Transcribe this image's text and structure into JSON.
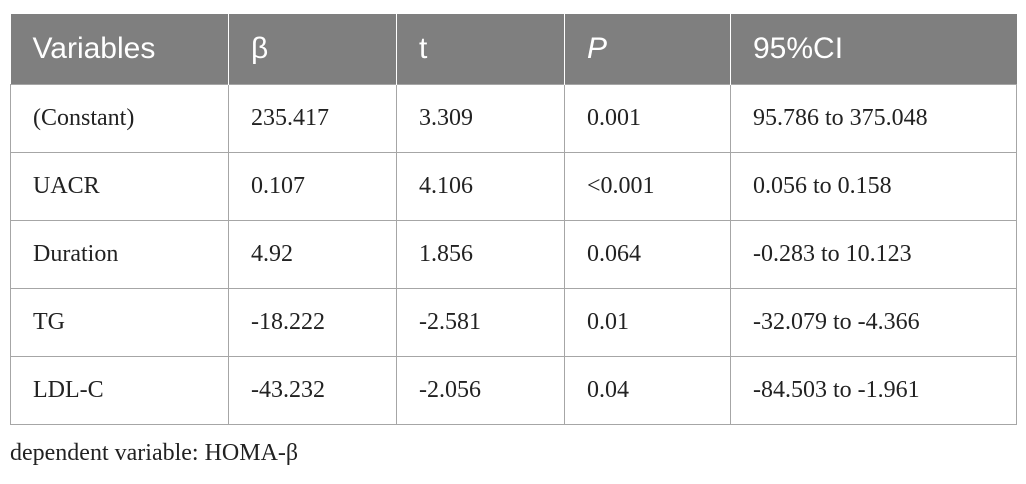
{
  "table": {
    "headers": [
      "Variables",
      "β",
      "t",
      "P",
      "95%CI"
    ],
    "rows": [
      [
        "(Constant)",
        "235.417",
        "3.309",
        "0.001",
        "95.786 to 375.048"
      ],
      [
        "UACR",
        "0.107",
        "4.106",
        "<0.001",
        "0.056 to 0.158"
      ],
      [
        "Duration",
        "4.92",
        "1.856",
        "0.064",
        "-0.283 to 10.123"
      ],
      [
        "TG",
        "-18.222",
        "-2.581",
        "0.01",
        "-32.079 to -4.366"
      ],
      [
        "LDL-C",
        "-43.232",
        "-2.056",
        "0.04",
        "-84.503 to -1.961"
      ]
    ]
  },
  "footnote": "dependent variable: HOMA-β",
  "colors": {
    "header_background": "#7f7f7f",
    "header_text": "#ffffff",
    "grid_line": "#a6a6a6"
  }
}
